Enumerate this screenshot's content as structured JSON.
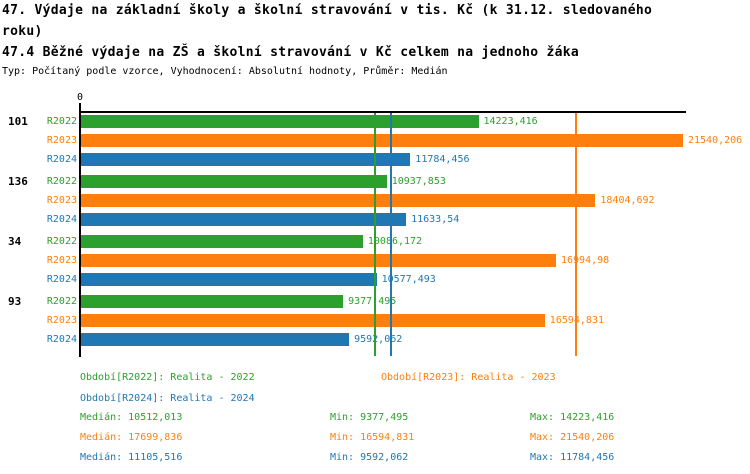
{
  "title": {
    "line1": "47. Výdaje na základní školy a školní stravování v tis. Kč (k 31.12. sledovaného",
    "line2": "roku)",
    "line3": "47.4 Běžné výdaje na ZŠ a školní stravování v Kč celkem na jednoho žáka",
    "meta": "Typ: Počítaný podle vzorce, Vyhodnocení: Absolutní hodnoty, Průměr: Medián"
  },
  "colors": {
    "series": {
      "R2022": "#2ca02c",
      "R2023": "#ff7f0e",
      "R2024": "#1f77b4"
    },
    "axis": "#000000",
    "background": "#ffffff"
  },
  "chart_data": {
    "type": "bar",
    "orientation": "horizontal",
    "title": "47.4 Běžné výdaje na ZŠ a školní stravování v Kč celkem na jednoho žáka",
    "series": [
      "R2022",
      "R2023",
      "R2024"
    ],
    "xaxis": {
      "zero_label": "0",
      "max_value": 21540.206,
      "grid": false
    },
    "groups": [
      {
        "label": "101",
        "bars": [
          {
            "series": "R2022",
            "value": 14223.416,
            "display": "14223,416"
          },
          {
            "series": "R2023",
            "value": 21540.206,
            "display": "21540,206"
          },
          {
            "series": "R2024",
            "value": 11784.456,
            "display": "11784,456"
          }
        ]
      },
      {
        "label": "136",
        "bars": [
          {
            "series": "R2022",
            "value": 10937.853,
            "display": "10937,853"
          },
          {
            "series": "R2023",
            "value": 18404.692,
            "display": "18404,692"
          },
          {
            "series": "R2024",
            "value": 11633.54,
            "display": "11633,54"
          }
        ]
      },
      {
        "label": "34",
        "bars": [
          {
            "series": "R2022",
            "value": 10086.172,
            "display": "10086,172"
          },
          {
            "series": "R2023",
            "value": 16994.98,
            "display": "16994,98"
          },
          {
            "series": "R2024",
            "value": 10577.493,
            "display": "10577,493"
          }
        ]
      },
      {
        "label": "93",
        "bars": [
          {
            "series": "R2022",
            "value": 9377.495,
            "display": "9377,495"
          },
          {
            "series": "R2023",
            "value": 16594.831,
            "display": "16594,831"
          },
          {
            "series": "R2024",
            "value": 9592.062,
            "display": "9592,062"
          }
        ]
      }
    ],
    "median_lines": [
      {
        "series": "R2022",
        "value": 10512.013
      },
      {
        "series": "R2023",
        "value": 17699.836
      },
      {
        "series": "R2024",
        "value": 11105.516
      }
    ]
  },
  "legend": {
    "periods": [
      {
        "series": "R2022",
        "label": "Období[R2022]: Realita - 2022"
      },
      {
        "series": "R2023",
        "label": "Období[R2023]: Realita - 2023"
      },
      {
        "series": "R2024",
        "label": "Období[R2024]: Realita - 2024"
      }
    ],
    "stats": [
      {
        "series": "R2022",
        "median": "Medián: 10512,013",
        "min": "Min: 9377,495",
        "max": "Max: 14223,416"
      },
      {
        "series": "R2023",
        "median": "Medián: 17699,836",
        "min": "Min: 16594,831",
        "max": "Max: 21540,206"
      },
      {
        "series": "R2024",
        "median": "Medián: 11105,516",
        "min": "Min: 9592,062",
        "max": "Max: 11784,456"
      }
    ]
  }
}
